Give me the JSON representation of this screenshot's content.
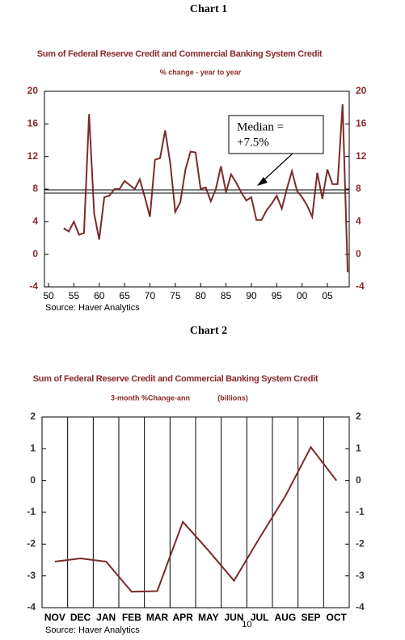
{
  "chart_data": [
    {
      "type": "line",
      "heading": "Chart 1",
      "title": "Sum of Federal Reserve Credit and Commercial Banking System Credit",
      "subtitle": "% change - year to year",
      "x": [
        1953,
        1954,
        1955,
        1956,
        1957,
        1958,
        1959,
        1960,
        1961,
        1962,
        1963,
        1964,
        1965,
        1966,
        1967,
        1968,
        1969,
        1970,
        1971,
        1972,
        1973,
        1974,
        1975,
        1976,
        1977,
        1978,
        1979,
        1980,
        1981,
        1982,
        1983,
        1984,
        1985,
        1986,
        1987,
        1988,
        1989,
        1990,
        1991,
        1992,
        1993,
        1994,
        1995,
        1996,
        1997,
        1998,
        1999,
        2000,
        2001,
        2002,
        2003,
        2004,
        2005,
        2006,
        2007,
        2008,
        2009
      ],
      "values": [
        3.2,
        2.8,
        4.0,
        2.4,
        2.6,
        17.2,
        5.0,
        1.8,
        7.0,
        7.2,
        8.0,
        8.0,
        9.0,
        8.5,
        8.0,
        9.2,
        7.0,
        4.6,
        11.6,
        11.8,
        15.2,
        11.2,
        5.2,
        6.4,
        10.4,
        12.6,
        12.5,
        8.0,
        8.2,
        6.5,
        8.0,
        10.8,
        7.6,
        9.8,
        8.8,
        7.6,
        6.6,
        7.0,
        4.2,
        4.2,
        5.4,
        6.2,
        7.2,
        5.6,
        8.0,
        10.2,
        7.8,
        7.0,
        6.0,
        4.6,
        10.0,
        6.8,
        10.4,
        8.6,
        8.6,
        18.4,
        -2.2
      ],
      "color": "#7b2a2a",
      "xlim": [
        1949.2,
        2009.3
      ],
      "xticks": [
        {
          "value": 1950,
          "label": "50"
        },
        {
          "value": 1955,
          "label": "55"
        },
        {
          "value": 1960,
          "label": "60"
        },
        {
          "value": 1965,
          "label": "65"
        },
        {
          "value": 1970,
          "label": "70"
        },
        {
          "value": 1975,
          "label": "75"
        },
        {
          "value": 1980,
          "label": "80"
        },
        {
          "value": 1985,
          "label": "85"
        },
        {
          "value": 1990,
          "label": "90"
        },
        {
          "value": 1995,
          "label": "95"
        },
        {
          "value": 2000,
          "label": "00"
        },
        {
          "value": 2005,
          "label": "05"
        }
      ],
      "ylim": [
        -4,
        20
      ],
      "yticks": [
        -4,
        0,
        4,
        8,
        12,
        16,
        20
      ],
      "y2lim": [
        -4,
        20
      ],
      "y2ticks": [
        -4,
        0,
        4,
        8,
        12,
        16,
        20
      ],
      "median": 7.5,
      "annotation": [
        "Median =",
        "+7.5%"
      ],
      "source": "Source: Haver Analytics"
    },
    {
      "type": "line",
      "heading": "Chart 2",
      "title": "Sum of Federal Reserve Credit and Commercial Banking System Credit",
      "subtitle": [
        "3-month %Change-ann",
        "(billions)"
      ],
      "categories": [
        "NOV",
        "DEC",
        "JAN",
        "FEB",
        "MAR",
        "APR",
        "MAY",
        "JUN",
        "JUL",
        "AUG",
        "SEP",
        "OCT"
      ],
      "values": [
        -2.55,
        -2.45,
        -2.55,
        -3.5,
        -3.48,
        -1.3,
        -2.2,
        -3.15,
        -1.8,
        -0.5,
        1.05,
        0.0
      ],
      "year_label": "10",
      "color": "#7b2a2a",
      "ylim": [
        -4,
        2
      ],
      "yticks": [
        -4,
        -3,
        -2,
        -1,
        0,
        1,
        2
      ],
      "y2lim": [
        -4,
        2
      ],
      "y2ticks": [
        -4,
        -3,
        -2,
        -1,
        0,
        1,
        2
      ],
      "source": "Source: Haver Analytics"
    }
  ]
}
